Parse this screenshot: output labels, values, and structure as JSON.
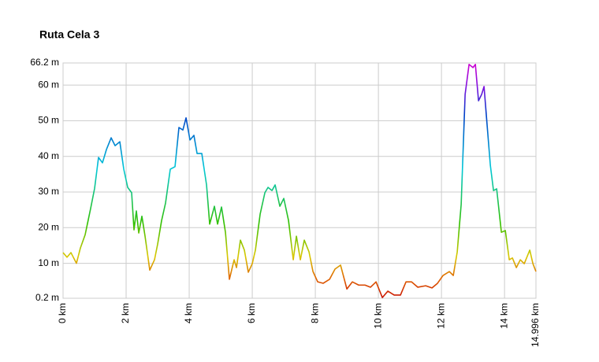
{
  "chart_data": {
    "type": "line",
    "title": "Ruta Cela 3",
    "x": [
      0,
      0.125,
      0.25,
      0.425,
      0.55,
      0.7,
      0.875,
      1.0,
      1.125,
      1.25,
      1.375,
      1.525,
      1.65,
      1.8,
      1.925,
      2.05,
      2.175,
      2.25,
      2.325,
      2.4,
      2.5,
      2.6,
      2.75,
      2.9,
      3.0,
      3.125,
      3.25,
      3.4,
      3.55,
      3.675,
      3.8,
      3.9,
      4.025,
      4.15,
      4.25,
      4.4,
      4.55,
      4.65,
      4.8,
      4.9,
      5.025,
      5.15,
      5.275,
      5.425,
      5.5,
      5.625,
      5.75,
      5.875,
      6.0,
      6.1,
      6.25,
      6.4,
      6.5,
      6.625,
      6.725,
      6.875,
      7.0,
      7.15,
      7.3,
      7.4,
      7.525,
      7.65,
      7.8,
      7.925,
      8.075,
      8.25,
      8.45,
      8.625,
      8.8,
      9.0,
      9.175,
      9.375,
      9.575,
      9.75,
      9.925,
      10.125,
      10.3,
      10.5,
      10.7,
      10.875,
      11.05,
      11.25,
      11.5,
      11.7,
      11.875,
      12.05,
      12.25,
      12.375,
      12.5,
      12.625,
      12.75,
      12.875,
      13.0,
      13.075,
      13.175,
      13.275,
      13.35,
      13.45,
      13.55,
      13.65,
      13.75,
      13.9,
      14.025,
      14.15,
      14.25,
      14.375,
      14.5,
      14.625,
      14.8,
      14.9,
      14.996
    ],
    "values": [
      13,
      11.7,
      13,
      10,
      14.3,
      18,
      25.4,
      31,
      39.7,
      38.2,
      41.9,
      45.2,
      43,
      44.1,
      36.4,
      31.3,
      29.8,
      19.4,
      24.7,
      18.5,
      23.2,
      17.6,
      8.1,
      11,
      15.4,
      22,
      26.9,
      36.4,
      37.1,
      48.1,
      47.4,
      50.8,
      44.6,
      45.9,
      40.8,
      40.8,
      32,
      21,
      26,
      21,
      25.8,
      18.7,
      5.5,
      11,
      8.8,
      16.5,
      13.7,
      7.5,
      9.9,
      13.7,
      23.8,
      29.8,
      31.3,
      30.4,
      32,
      26,
      28.2,
      22,
      11,
      17.6,
      11,
      16.5,
      13.2,
      7.7,
      4.8,
      4.4,
      5.5,
      8.4,
      9.5,
      2.8,
      4.8,
      3.9,
      3.9,
      3.3,
      4.8,
      0.4,
      2.2,
      1.1,
      1.1,
      4.8,
      4.8,
      3.3,
      3.7,
      3.1,
      4.4,
      6.6,
      7.7,
      6.6,
      13.2,
      26.5,
      57.4,
      65.8,
      64.9,
      65.8,
      55.6,
      57.4,
      59.6,
      48.5,
      37.5,
      30.4,
      30.9,
      18.7,
      19.2,
      11,
      11.5,
      8.8,
      11,
      9.9,
      13.7,
      9.9,
      7.7
    ],
    "xlim": [
      0,
      14.996
    ],
    "xticks": [
      {
        "value": 0,
        "label": "0 km"
      },
      {
        "value": 2,
        "label": "2 km"
      },
      {
        "value": 4,
        "label": "4 km"
      },
      {
        "value": 6,
        "label": "6 km"
      },
      {
        "value": 8,
        "label": "8 km"
      },
      {
        "value": 10,
        "label": "10 km"
      },
      {
        "value": 12,
        "label": "12 km"
      },
      {
        "value": 14,
        "label": "14 km"
      },
      {
        "value": 14.996,
        "label": "14.996 km"
      }
    ],
    "ylim": [
      0.2,
      66.2
    ],
    "yticks": [
      {
        "value": 0.2,
        "label": "0.2 m"
      },
      {
        "value": 10,
        "label": "10 m"
      },
      {
        "value": 20,
        "label": "20 m"
      },
      {
        "value": 30,
        "label": "30 m"
      },
      {
        "value": 40,
        "label": "40 m"
      },
      {
        "value": 50,
        "label": "50 m"
      },
      {
        "value": 60,
        "label": "60 m"
      },
      {
        "value": 66.2,
        "label": "66.2 m"
      }
    ],
    "grid": true
  }
}
